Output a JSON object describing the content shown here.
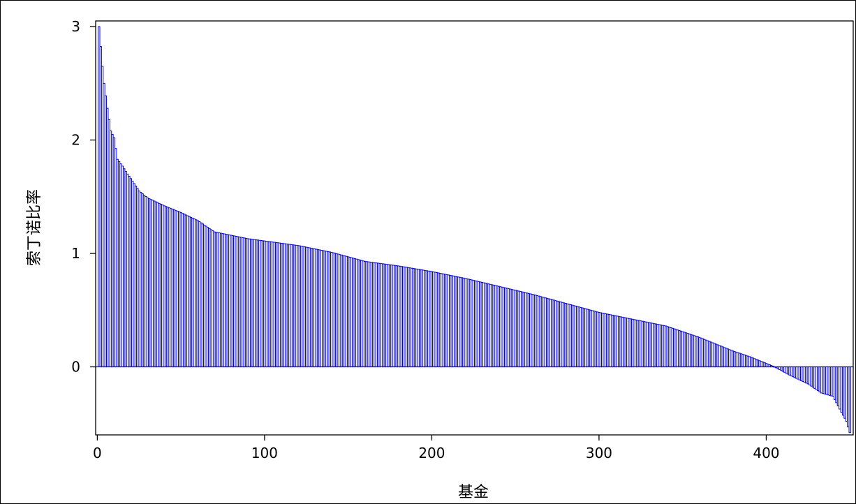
{
  "chart_data": {
    "type": "bar",
    "title": "",
    "xlabel": "基金",
    "ylabel": "索丁诺比率",
    "xlim": [
      -1,
      452
    ],
    "ylim": [
      -0.6,
      3.05
    ],
    "xticks": [
      0,
      100,
      200,
      300,
      400
    ],
    "yticks": [
      0,
      1,
      2,
      3
    ],
    "xtick_labels": [
      "0",
      "100",
      "200",
      "300",
      "400"
    ],
    "ytick_labels": [
      "0",
      "1",
      "2",
      "3"
    ],
    "n_funds": 450,
    "x_start": 1,
    "bar_color": "#0000ff",
    "grid": false,
    "legend": "none",
    "sorted": "descending",
    "profile": [
      [
        1,
        3.0
      ],
      [
        3,
        2.65
      ],
      [
        4,
        2.5
      ],
      [
        6,
        2.28
      ],
      [
        8,
        2.08
      ],
      [
        10,
        2.02
      ],
      [
        12,
        1.83
      ],
      [
        15,
        1.77
      ],
      [
        18,
        1.7
      ],
      [
        20,
        1.66
      ],
      [
        25,
        1.55
      ],
      [
        30,
        1.49
      ],
      [
        40,
        1.42
      ],
      [
        50,
        1.36
      ],
      [
        60,
        1.29
      ],
      [
        70,
        1.19
      ],
      [
        80,
        1.16
      ],
      [
        90,
        1.13
      ],
      [
        100,
        1.11
      ],
      [
        120,
        1.07
      ],
      [
        140,
        1.01
      ],
      [
        160,
        0.93
      ],
      [
        180,
        0.89
      ],
      [
        200,
        0.84
      ],
      [
        220,
        0.78
      ],
      [
        240,
        0.71
      ],
      [
        260,
        0.64
      ],
      [
        280,
        0.56
      ],
      [
        300,
        0.48
      ],
      [
        320,
        0.42
      ],
      [
        340,
        0.36
      ],
      [
        360,
        0.26
      ],
      [
        380,
        0.14
      ],
      [
        390,
        0.09
      ],
      [
        400,
        0.03
      ],
      [
        405,
        0.0
      ],
      [
        410,
        -0.04
      ],
      [
        415,
        -0.08
      ],
      [
        425,
        -0.15
      ],
      [
        433,
        -0.23
      ],
      [
        440,
        -0.26
      ],
      [
        445,
        -0.4
      ],
      [
        448,
        -0.48
      ],
      [
        450,
        -0.58
      ]
    ]
  }
}
